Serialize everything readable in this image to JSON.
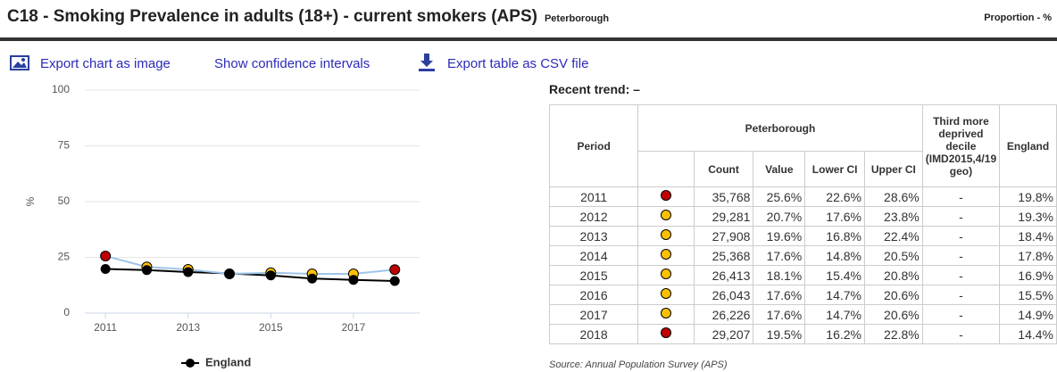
{
  "header": {
    "title": "C18 - Smoking Prevalence in adults (18+) - current smokers (APS)",
    "area": "Peterborough",
    "unit": "Proportion - %"
  },
  "toolbar": {
    "export_image": "Export chart as image",
    "confidence": "Show confidence intervals",
    "export_csv": "Export table as CSV file"
  },
  "chart_data": {
    "type": "line",
    "x": [
      2011,
      2012,
      2013,
      2014,
      2015,
      2016,
      2017,
      2018
    ],
    "xlim": [
      2010.5,
      2018.6
    ],
    "xticks": [
      2011,
      2013,
      2015,
      2017
    ],
    "ylabel": "%",
    "ylim": [
      0,
      100
    ],
    "yticks": [
      0,
      25,
      50,
      75,
      100
    ],
    "grid": true,
    "legend": "bottom",
    "series": [
      {
        "color": "#9fc5e8",
        "marker_colors": [
          "#c00000",
          "#ffc000",
          "#ffc000",
          "#ffc000",
          "#ffc000",
          "#ffc000",
          "#ffc000",
          "#c00000"
        ],
        "values": [
          25.6,
          20.7,
          19.6,
          17.6,
          18.1,
          17.6,
          17.6,
          19.5
        ]
      },
      {
        "name": "England",
        "color": "#000000",
        "values": [
          19.8,
          19.3,
          18.4,
          17.8,
          16.9,
          15.5,
          14.9,
          14.4
        ]
      }
    ]
  },
  "table": {
    "trend_label": "Recent trend:",
    "trend": "–",
    "headers": {
      "period": "Period",
      "area": "Peterborough",
      "decile": "Third more deprived decile (IMD2015,4/19 geo)",
      "england": "England",
      "count": "Count",
      "value": "Value",
      "lower": "Lower CI",
      "upper": "Upper CI"
    },
    "rows": [
      [
        "2011",
        "35,768",
        "25.6%",
        "22.6%",
        "28.6%",
        "-",
        "19.8%"
      ],
      [
        "2012",
        "29,281",
        "20.7%",
        "17.6%",
        "23.8%",
        "-",
        "19.3%"
      ],
      [
        "2013",
        "27,908",
        "19.6%",
        "16.8%",
        "22.4%",
        "-",
        "18.4%"
      ],
      [
        "2014",
        "25,368",
        "17.6%",
        "14.8%",
        "20.5%",
        "-",
        "17.8%"
      ],
      [
        "2015",
        "26,413",
        "18.1%",
        "15.4%",
        "20.8%",
        "-",
        "16.9%"
      ],
      [
        "2016",
        "26,043",
        "17.6%",
        "14.7%",
        "20.6%",
        "-",
        "15.5%"
      ],
      [
        "2017",
        "26,226",
        "17.6%",
        "14.7%",
        "20.6%",
        "-",
        "14.9%"
      ],
      [
        "2018",
        "29,207",
        "19.5%",
        "16.2%",
        "22.8%",
        "-",
        "14.4%"
      ]
    ],
    "source": "Source: Annual Population Survey (APS)"
  }
}
